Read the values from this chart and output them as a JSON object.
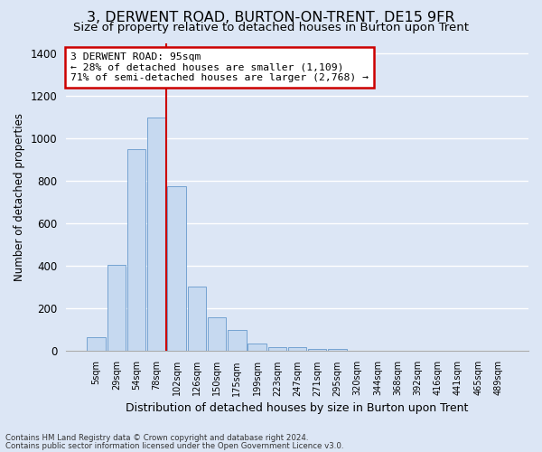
{
  "title": "3, DERWENT ROAD, BURTON-ON-TRENT, DE15 9FR",
  "subtitle": "Size of property relative to detached houses in Burton upon Trent",
  "xlabel": "Distribution of detached houses by size in Burton upon Trent",
  "ylabel": "Number of detached properties",
  "bar_labels": [
    "5sqm",
    "29sqm",
    "54sqm",
    "78sqm",
    "102sqm",
    "126sqm",
    "150sqm",
    "175sqm",
    "199sqm",
    "223sqm",
    "247sqm",
    "271sqm",
    "295sqm",
    "320sqm",
    "344sqm",
    "368sqm",
    "392sqm",
    "416sqm",
    "441sqm",
    "465sqm",
    "489sqm"
  ],
  "bar_values": [
    65,
    405,
    950,
    1100,
    775,
    305,
    160,
    100,
    35,
    18,
    18,
    12,
    10,
    3,
    2,
    1,
    0,
    0,
    0,
    0,
    0
  ],
  "bar_color": "#c6d9f0",
  "bar_edge_color": "#6699cc",
  "vline_x": 3.5,
  "vline_color": "#cc0000",
  "annotation_title": "3 DERWENT ROAD: 95sqm",
  "annotation_line1": "← 28% of detached houses are smaller (1,109)",
  "annotation_line2": "71% of semi-detached houses are larger (2,768) →",
  "annotation_box_color": "#cc0000",
  "ylim": [
    0,
    1450
  ],
  "yticks": [
    0,
    200,
    400,
    600,
    800,
    1000,
    1200,
    1400
  ],
  "footer1": "Contains HM Land Registry data © Crown copyright and database right 2024.",
  "footer2": "Contains public sector information licensed under the Open Government Licence v3.0.",
  "background_color": "#dce6f5",
  "plot_background": "#dce6f5",
  "grid_color": "#ffffff",
  "title_fontsize": 11.5,
  "subtitle_fontsize": 9.5,
  "ylabel_fontsize": 8.5,
  "xlabel_fontsize": 9.0
}
